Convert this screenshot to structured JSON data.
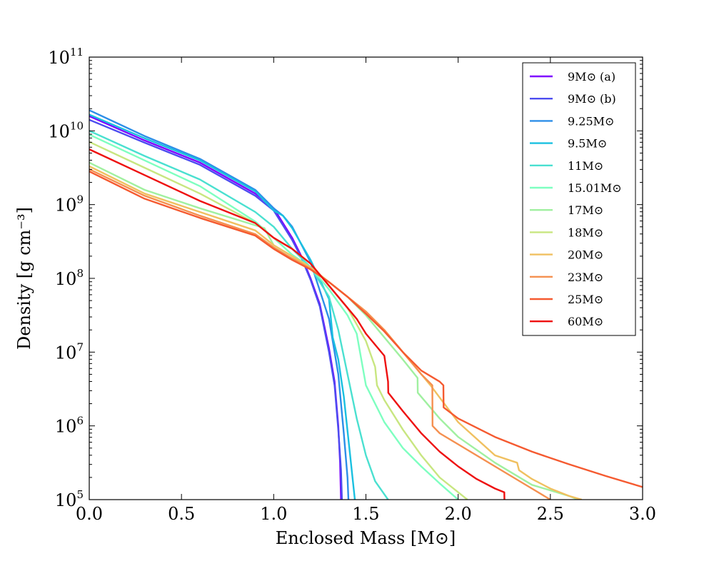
{
  "chart_data": {
    "type": "line",
    "title": "",
    "xlabel": "Enclosed Mass [M⊙]",
    "ylabel": "Density [g cm⁻³]",
    "xlim": [
      0,
      3
    ],
    "ylim_log10": [
      5,
      11
    ],
    "yscale": "log",
    "grid": false,
    "legend_position": "top-right",
    "x_ticks": [
      {
        "value": 0.0,
        "label": "0.0"
      },
      {
        "value": 0.5,
        "label": "0.5"
      },
      {
        "value": 1.0,
        "label": "1.0"
      },
      {
        "value": 1.5,
        "label": "1.5"
      },
      {
        "value": 2.0,
        "label": "2.0"
      },
      {
        "value": 2.5,
        "label": "2.5"
      },
      {
        "value": 3.0,
        "label": "3.0"
      }
    ],
    "y_ticks": [
      {
        "exp": 5,
        "base": "10",
        "sup": "5"
      },
      {
        "exp": 6,
        "base": "10",
        "sup": "6"
      },
      {
        "exp": 7,
        "base": "10",
        "sup": "7"
      },
      {
        "exp": 8,
        "base": "10",
        "sup": "8"
      },
      {
        "exp": 9,
        "base": "10",
        "sup": "9"
      },
      {
        "exp": 10,
        "base": "10",
        "sup": "10"
      },
      {
        "exp": 11,
        "base": "10",
        "sup": "11"
      }
    ],
    "series": [
      {
        "name": "9M⊙ (a)",
        "color": "#7f00ff",
        "x": [
          0,
          0.3,
          0.6,
          0.9,
          1.0,
          1.1,
          1.15,
          1.2,
          1.25,
          1.3,
          1.33,
          1.35,
          1.36,
          1.365
        ],
        "log_y": [
          10.2,
          9.87,
          9.57,
          9.15,
          8.95,
          8.55,
          8.3,
          8.0,
          7.65,
          7.05,
          6.6,
          6.0,
          5.5,
          5.0
        ]
      },
      {
        "name": "9M⊙ (b)",
        "color": "#4c4cf0",
        "x": [
          0,
          0.3,
          0.6,
          0.9,
          1.0,
          1.1,
          1.15,
          1.2,
          1.25,
          1.3,
          1.33,
          1.35,
          1.365,
          1.37
        ],
        "log_y": [
          10.15,
          9.84,
          9.54,
          9.12,
          8.92,
          8.52,
          8.28,
          7.98,
          7.62,
          7.0,
          6.55,
          5.95,
          5.4,
          5.0
        ]
      },
      {
        "name": "9.25M⊙",
        "color": "#2c8ee8",
        "x": [
          0,
          0.3,
          0.6,
          0.9,
          1.0,
          1.05,
          1.1,
          1.2,
          1.3,
          1.35,
          1.38,
          1.4,
          1.405
        ],
        "log_y": [
          10.28,
          9.93,
          9.62,
          9.2,
          8.95,
          8.85,
          8.7,
          8.22,
          7.45,
          6.7,
          5.9,
          5.3,
          5.0
        ]
      },
      {
        "name": "9.5M⊙",
        "color": "#1ac0e0",
        "x": [
          0,
          0.3,
          0.6,
          0.9,
          1.0,
          1.05,
          1.1,
          1.2,
          1.3,
          1.32,
          1.35,
          1.38,
          1.41,
          1.44
        ],
        "log_y": [
          10.22,
          9.9,
          9.6,
          9.18,
          8.92,
          8.85,
          8.68,
          8.25,
          7.72,
          7.2,
          6.9,
          6.4,
          5.7,
          5.0
        ]
      },
      {
        "name": "11M⊙",
        "color": "#4ae0d0",
        "x": [
          0,
          0.3,
          0.6,
          0.9,
          1.0,
          1.1,
          1.2,
          1.3,
          1.35,
          1.4,
          1.45,
          1.5,
          1.55,
          1.62
        ],
        "log_y": [
          10.0,
          9.66,
          9.34,
          8.9,
          8.7,
          8.4,
          8.15,
          7.75,
          7.3,
          6.7,
          6.1,
          5.6,
          5.25,
          5.0
        ]
      },
      {
        "name": "15.01M⊙",
        "color": "#7effc0",
        "x": [
          0,
          0.3,
          0.6,
          0.9,
          1.0,
          1.1,
          1.2,
          1.3,
          1.4,
          1.45,
          1.5,
          1.6,
          1.7,
          1.8,
          1.9,
          2.0
        ],
        "log_y": [
          9.95,
          9.6,
          9.25,
          8.77,
          8.55,
          8.32,
          8.15,
          7.85,
          7.5,
          7.25,
          6.55,
          6.05,
          5.7,
          5.45,
          5.22,
          5.0
        ]
      },
      {
        "name": "17M⊙",
        "color": "#a0f0a0",
        "x": [
          0,
          0.3,
          0.6,
          0.9,
          0.95,
          1.0,
          1.1,
          1.2,
          1.3,
          1.4,
          1.5,
          1.6,
          1.7,
          1.78,
          1.781,
          1.9,
          2.0,
          2.2,
          2.4,
          2.6,
          2.65
        ],
        "log_y": [
          9.57,
          9.2,
          8.95,
          8.72,
          8.68,
          8.45,
          8.3,
          8.15,
          7.95,
          7.75,
          7.5,
          7.2,
          6.9,
          6.65,
          6.45,
          6.1,
          5.85,
          5.5,
          5.2,
          5.05,
          5.0
        ]
      },
      {
        "name": "18M⊙",
        "color": "#c8e680",
        "x": [
          0,
          0.3,
          0.6,
          0.9,
          1.0,
          1.1,
          1.2,
          1.3,
          1.4,
          1.5,
          1.55,
          1.56,
          1.6,
          1.7,
          1.8,
          1.85,
          1.9,
          2.0,
          2.05
        ],
        "log_y": [
          9.85,
          9.5,
          9.15,
          8.75,
          8.55,
          8.4,
          8.2,
          7.9,
          7.6,
          7.15,
          6.8,
          6.55,
          6.35,
          5.95,
          5.6,
          5.45,
          5.3,
          5.1,
          5.0
        ]
      },
      {
        "name": "20M⊙",
        "color": "#f0c060",
        "x": [
          0,
          0.3,
          0.6,
          0.9,
          1.0,
          1.1,
          1.2,
          1.3,
          1.4,
          1.5,
          1.6,
          1.7,
          1.85,
          2.0,
          2.2,
          2.32,
          2.33,
          2.4,
          2.5,
          2.6,
          2.67
        ],
        "log_y": [
          9.52,
          9.15,
          8.9,
          8.65,
          8.45,
          8.3,
          8.15,
          7.95,
          7.75,
          7.55,
          7.3,
          7.0,
          6.55,
          6.05,
          5.6,
          5.5,
          5.4,
          5.28,
          5.15,
          5.05,
          5.0
        ]
      },
      {
        "name": "23M⊙",
        "color": "#f59050",
        "x": [
          0,
          0.3,
          0.6,
          0.9,
          1.0,
          1.1,
          1.2,
          1.3,
          1.4,
          1.5,
          1.6,
          1.7,
          1.8,
          1.86,
          1.861,
          1.9,
          2.0,
          2.2,
          2.4,
          2.5
        ],
        "log_y": [
          9.48,
          9.12,
          8.85,
          8.6,
          8.42,
          8.27,
          8.13,
          7.95,
          7.75,
          7.55,
          7.3,
          7.0,
          6.7,
          6.55,
          6.0,
          5.9,
          5.75,
          5.45,
          5.15,
          5.0
        ]
      },
      {
        "name": "25M⊙",
        "color": "#f55a30",
        "x": [
          0,
          0.3,
          0.6,
          0.9,
          1.0,
          1.1,
          1.2,
          1.3,
          1.4,
          1.5,
          1.6,
          1.7,
          1.8,
          1.9,
          1.92,
          1.921,
          2.0,
          2.2,
          2.4,
          2.6,
          2.8,
          3.0
        ],
        "log_y": [
          9.45,
          9.08,
          8.82,
          8.58,
          8.4,
          8.25,
          8.12,
          7.95,
          7.75,
          7.52,
          7.28,
          7.0,
          6.75,
          6.6,
          6.55,
          6.25,
          6.1,
          5.85,
          5.65,
          5.48,
          5.32,
          5.17
        ]
      },
      {
        "name": "60M⊙",
        "color": "#ee1010",
        "x": [
          0,
          0.3,
          0.6,
          0.9,
          1.0,
          1.1,
          1.2,
          1.3,
          1.4,
          1.45,
          1.5,
          1.6,
          1.62,
          1.621,
          1.7,
          1.8,
          1.9,
          2.0,
          2.1,
          2.2,
          2.25,
          2.251
        ],
        "log_y": [
          9.75,
          9.4,
          9.05,
          8.75,
          8.55,
          8.4,
          8.2,
          7.9,
          7.6,
          7.45,
          7.25,
          6.95,
          6.6,
          6.45,
          6.2,
          5.9,
          5.65,
          5.45,
          5.28,
          5.15,
          5.1,
          5.0
        ]
      }
    ]
  }
}
